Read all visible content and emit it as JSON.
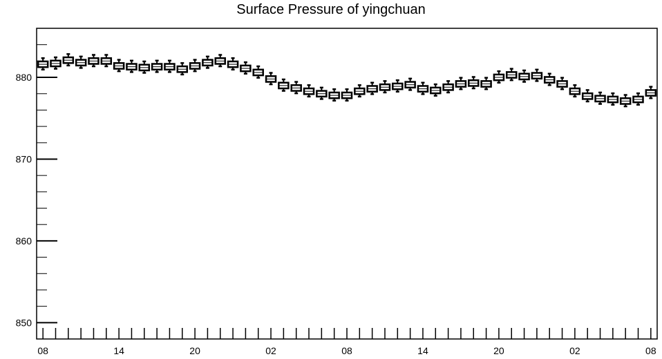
{
  "chart_data": {
    "type": "box",
    "title": "Surface Pressure of yingchuan",
    "xlabel": "",
    "ylabel": "",
    "ylim": [
      848,
      886
    ],
    "y_ticks": [
      850,
      860,
      870,
      880
    ],
    "x_tick_labels": [
      "08",
      "14",
      "20",
      "02",
      "08",
      "14",
      "20",
      "02",
      "08"
    ],
    "x_tick_label_hours": [
      0,
      6,
      12,
      18,
      24,
      30,
      36,
      42,
      48
    ],
    "x_range_hours": [
      -0.5,
      48.5
    ],
    "hours": [
      0,
      1,
      2,
      3,
      4,
      5,
      6,
      7,
      8,
      9,
      10,
      11,
      12,
      13,
      14,
      15,
      16,
      17,
      18,
      19,
      20,
      21,
      22,
      23,
      24,
      25,
      26,
      27,
      28,
      29,
      30,
      31,
      32,
      33,
      34,
      35,
      36,
      37,
      38,
      39,
      40,
      41,
      42,
      43,
      44,
      45,
      46,
      47,
      48
    ],
    "medians": [
      881.6,
      881.7,
      882.1,
      881.8,
      882.0,
      882.0,
      881.4,
      881.3,
      881.2,
      881.3,
      881.3,
      881.0,
      881.4,
      881.8,
      882.0,
      881.6,
      881.1,
      880.6,
      879.8,
      879.0,
      878.7,
      878.3,
      878.0,
      877.8,
      877.8,
      878.3,
      878.6,
      878.8,
      878.9,
      879.1,
      878.6,
      878.4,
      878.8,
      879.2,
      879.3,
      879.2,
      880.0,
      880.3,
      880.1,
      880.2,
      879.7,
      879.2,
      878.3,
      877.7,
      877.4,
      877.3,
      877.1,
      877.3,
      878.1
    ]
  }
}
